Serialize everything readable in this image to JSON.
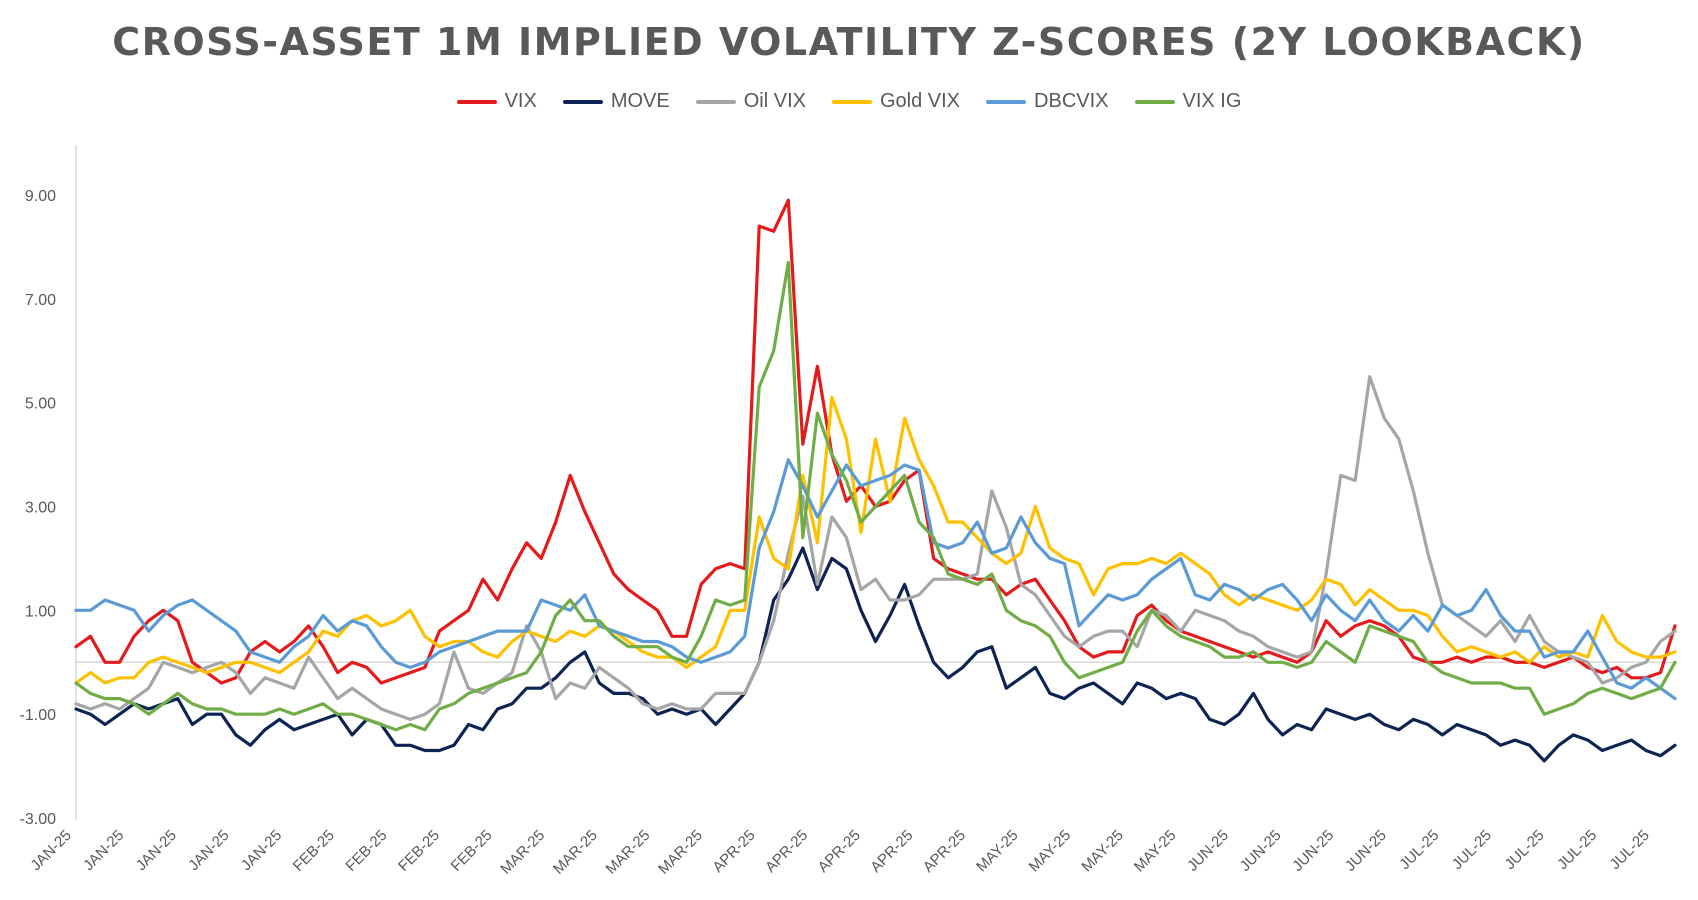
{
  "chart_data": {
    "type": "line",
    "title": "CROSS-ASSET 1M IMPLIED VOLATILITY Z-SCORES (2Y LOOKBACK)",
    "xlabel": "",
    "ylabel": "",
    "ylim": [
      -3,
      10
    ],
    "ytick_values": [
      9,
      7,
      5,
      3,
      1,
      -1,
      -3
    ],
    "ytick_labels": [
      "9.00",
      "7.00",
      "5.00",
      "3.00",
      "1.00",
      "-1.00",
      "-3.00"
    ],
    "xtick_labels": [
      "JAN-25",
      "JAN-25",
      "JAN-25",
      "JAN-25",
      "JAN-25",
      "FEB-25",
      "FEB-25",
      "FEB-25",
      "FEB-25",
      "MAR-25",
      "MAR-25",
      "MAR-25",
      "MAR-25",
      "APR-25",
      "APR-25",
      "APR-25",
      "APR-25",
      "APR-25",
      "MAY-25",
      "MAY-25",
      "MAY-25",
      "MAY-25",
      "JUN-25",
      "JUN-25",
      "JUN-25",
      "JUN-25",
      "JUL-25",
      "JUL-25",
      "JUL-25",
      "JUL-25",
      "JUL-25"
    ],
    "legend_position": "top-center",
    "grid": false,
    "series": [
      {
        "name": "VIX",
        "color": "#E41A1C",
        "values": [
          0.3,
          0.5,
          0.0,
          0.0,
          0.5,
          0.8,
          1.0,
          0.8,
          0.0,
          -0.2,
          -0.4,
          -0.3,
          0.2,
          0.4,
          0.2,
          0.4,
          0.7,
          0.3,
          -0.2,
          0.0,
          -0.1,
          -0.4,
          -0.3,
          -0.2,
          -0.1,
          0.6,
          0.8,
          1.0,
          1.6,
          1.2,
          1.8,
          2.3,
          2.0,
          2.7,
          3.6,
          2.9,
          2.3,
          1.7,
          1.4,
          1.2,
          1.0,
          0.5,
          0.5,
          1.5,
          1.8,
          1.9,
          1.8,
          8.4,
          8.3,
          8.9,
          4.2,
          5.7,
          4.0,
          3.1,
          3.4,
          3.0,
          3.1,
          3.5,
          3.7,
          2.0,
          1.8,
          1.7,
          1.6,
          1.6,
          1.3,
          1.5,
          1.6,
          1.2,
          0.8,
          0.3,
          0.1,
          0.2,
          0.2,
          0.9,
          1.1,
          0.8,
          0.6,
          0.5,
          0.4,
          0.3,
          0.2,
          0.1,
          0.2,
          0.1,
          0.0,
          0.2,
          0.8,
          0.5,
          0.7,
          0.8,
          0.7,
          0.5,
          0.1,
          0.0,
          0.0,
          0.1,
          0.0,
          0.1,
          0.1,
          0.0,
          0.0,
          -0.1,
          0.0,
          0.1,
          -0.1,
          -0.2,
          -0.1,
          -0.3,
          -0.3,
          -0.2,
          0.7
        ]
      },
      {
        "name": "MOVE",
        "color": "#0C2454",
        "values": [
          -0.9,
          -1.0,
          -1.2,
          -1.0,
          -0.8,
          -0.9,
          -0.8,
          -0.7,
          -1.2,
          -1.0,
          -1.0,
          -1.4,
          -1.6,
          -1.3,
          -1.1,
          -1.3,
          -1.2,
          -1.1,
          -1.0,
          -1.4,
          -1.1,
          -1.2,
          -1.6,
          -1.6,
          -1.7,
          -1.7,
          -1.6,
          -1.2,
          -1.3,
          -0.9,
          -0.8,
          -0.5,
          -0.5,
          -0.3,
          0.0,
          0.2,
          -0.4,
          -0.6,
          -0.6,
          -0.7,
          -1.0,
          -0.9,
          -1.0,
          -0.9,
          -1.2,
          -0.9,
          -0.6,
          0.0,
          1.2,
          1.6,
          2.2,
          1.4,
          2.0,
          1.8,
          1.0,
          0.4,
          0.9,
          1.5,
          0.7,
          0.0,
          -0.3,
          -0.1,
          0.2,
          0.3,
          -0.5,
          -0.3,
          -0.1,
          -0.6,
          -0.7,
          -0.5,
          -0.4,
          -0.6,
          -0.8,
          -0.4,
          -0.5,
          -0.7,
          -0.6,
          -0.7,
          -1.1,
          -1.2,
          -1.0,
          -0.6,
          -1.1,
          -1.4,
          -1.2,
          -1.3,
          -0.9,
          -1.0,
          -1.1,
          -1.0,
          -1.2,
          -1.3,
          -1.1,
          -1.2,
          -1.4,
          -1.2,
          -1.3,
          -1.4,
          -1.6,
          -1.5,
          -1.6,
          -1.9,
          -1.6,
          -1.4,
          -1.5,
          -1.7,
          -1.6,
          -1.5,
          -1.7,
          -1.8,
          -1.6
        ]
      },
      {
        "name": "Oil VIX",
        "color": "#A6A6A6",
        "values": [
          -0.8,
          -0.9,
          -0.8,
          -0.9,
          -0.7,
          -0.5,
          0.0,
          -0.1,
          -0.2,
          -0.1,
          0.0,
          -0.2,
          -0.6,
          -0.3,
          -0.4,
          -0.5,
          0.1,
          -0.3,
          -0.7,
          -0.5,
          -0.7,
          -0.9,
          -1.0,
          -1.1,
          -1.0,
          -0.8,
          0.2,
          -0.5,
          -0.6,
          -0.4,
          -0.2,
          0.7,
          0.2,
          -0.7,
          -0.4,
          -0.5,
          -0.1,
          -0.3,
          -0.5,
          -0.8,
          -0.9,
          -0.8,
          -0.9,
          -0.9,
          -0.6,
          -0.6,
          -0.6,
          0.0,
          0.8,
          2.1,
          3.2,
          1.5,
          2.8,
          2.4,
          1.4,
          1.6,
          1.2,
          1.2,
          1.3,
          1.6,
          1.6,
          1.6,
          1.7,
          3.3,
          2.6,
          1.5,
          1.3,
          0.9,
          0.5,
          0.3,
          0.5,
          0.6,
          0.6,
          0.3,
          1.0,
          0.9,
          0.6,
          1.0,
          0.9,
          0.8,
          0.6,
          0.5,
          0.3,
          0.2,
          0.1,
          0.2,
          1.7,
          3.6,
          3.5,
          5.5,
          4.7,
          4.3,
          3.3,
          2.1,
          1.1,
          0.9,
          0.7,
          0.5,
          0.8,
          0.4,
          0.9,
          0.4,
          0.2,
          0.1,
          0.0,
          -0.4,
          -0.3,
          -0.1,
          0.0,
          0.4,
          0.6
        ]
      },
      {
        "name": "Gold VIX",
        "color": "#FFC000",
        "values": [
          -0.4,
          -0.2,
          -0.4,
          -0.3,
          -0.3,
          0.0,
          0.1,
          0.0,
          -0.1,
          -0.2,
          -0.1,
          0.0,
          0.0,
          -0.1,
          -0.2,
          0.0,
          0.2,
          0.6,
          0.5,
          0.8,
          0.9,
          0.7,
          0.8,
          1.0,
          0.5,
          0.3,
          0.4,
          0.4,
          0.2,
          0.1,
          0.4,
          0.6,
          0.5,
          0.4,
          0.6,
          0.5,
          0.7,
          0.6,
          0.4,
          0.2,
          0.1,
          0.1,
          -0.1,
          0.1,
          0.3,
          1.0,
          1.0,
          2.8,
          2.0,
          1.8,
          3.6,
          2.3,
          5.1,
          4.3,
          2.5,
          4.3,
          3.1,
          4.7,
          3.9,
          3.4,
          2.7,
          2.7,
          2.4,
          2.1,
          1.9,
          2.1,
          3.0,
          2.2,
          2.0,
          1.9,
          1.3,
          1.8,
          1.9,
          1.9,
          2.0,
          1.9,
          2.1,
          1.9,
          1.7,
          1.3,
          1.1,
          1.3,
          1.2,
          1.1,
          1.0,
          1.2,
          1.6,
          1.5,
          1.1,
          1.4,
          1.2,
          1.0,
          1.0,
          0.9,
          0.5,
          0.2,
          0.3,
          0.2,
          0.1,
          0.2,
          0.0,
          0.3,
          0.1,
          0.2,
          0.1,
          0.9,
          0.4,
          0.2,
          0.1,
          0.1,
          0.2
        ]
      },
      {
        "name": "DBCVIX",
        "color": "#5B9BD5",
        "values": [
          1.0,
          1.0,
          1.2,
          1.1,
          1.0,
          0.6,
          0.9,
          1.1,
          1.2,
          1.0,
          0.8,
          0.6,
          0.2,
          0.1,
          0.0,
          0.3,
          0.5,
          0.9,
          0.6,
          0.8,
          0.7,
          0.3,
          0.0,
          -0.1,
          0.0,
          0.2,
          0.3,
          0.4,
          0.5,
          0.6,
          0.6,
          0.6,
          1.2,
          1.1,
          1.0,
          1.3,
          0.7,
          0.6,
          0.5,
          0.4,
          0.4,
          0.3,
          0.1,
          0.0,
          0.1,
          0.2,
          0.5,
          2.2,
          2.9,
          3.9,
          3.4,
          2.8,
          3.3,
          3.8,
          3.4,
          3.5,
          3.6,
          3.8,
          3.7,
          2.3,
          2.2,
          2.3,
          2.7,
          2.1,
          2.2,
          2.8,
          2.3,
          2.0,
          1.9,
          0.7,
          1.0,
          1.3,
          1.2,
          1.3,
          1.6,
          1.8,
          2.0,
          1.3,
          1.2,
          1.5,
          1.4,
          1.2,
          1.4,
          1.5,
          1.2,
          0.8,
          1.3,
          1.0,
          0.8,
          1.2,
          0.8,
          0.6,
          0.9,
          0.6,
          1.1,
          0.9,
          1.0,
          1.4,
          0.9,
          0.6,
          0.6,
          0.1,
          0.2,
          0.2,
          0.6,
          0.1,
          -0.4,
          -0.5,
          -0.3,
          -0.5,
          -0.7
        ]
      },
      {
        "name": "VIX IG",
        "color": "#70AD47",
        "values": [
          -0.4,
          -0.6,
          -0.7,
          -0.7,
          -0.8,
          -1.0,
          -0.8,
          -0.6,
          -0.8,
          -0.9,
          -0.9,
          -1.0,
          -1.0,
          -1.0,
          -0.9,
          -1.0,
          -0.9,
          -0.8,
          -1.0,
          -1.0,
          -1.1,
          -1.2,
          -1.3,
          -1.2,
          -1.3,
          -0.9,
          -0.8,
          -0.6,
          -0.5,
          -0.4,
          -0.3,
          -0.2,
          0.2,
          0.9,
          1.2,
          0.8,
          0.8,
          0.5,
          0.3,
          0.3,
          0.3,
          0.1,
          0.0,
          0.5,
          1.2,
          1.1,
          1.2,
          5.3,
          6.0,
          7.7,
          2.4,
          4.8,
          4.0,
          3.5,
          2.7,
          3.0,
          3.3,
          3.6,
          2.7,
          2.4,
          1.7,
          1.6,
          1.5,
          1.7,
          1.0,
          0.8,
          0.7,
          0.5,
          0.0,
          -0.3,
          -0.2,
          -0.1,
          0.0,
          0.6,
          1.0,
          0.7,
          0.5,
          0.4,
          0.3,
          0.1,
          0.1,
          0.2,
          0.0,
          0.0,
          -0.1,
          0.0,
          0.4,
          0.2,
          0.0,
          0.7,
          0.6,
          0.5,
          0.4,
          0.0,
          -0.2,
          -0.3,
          -0.4,
          -0.4,
          -0.4,
          -0.5,
          -0.5,
          -1.0,
          -0.9,
          -0.8,
          -0.6,
          -0.5,
          -0.6,
          -0.7,
          -0.6,
          -0.5,
          0.0
        ]
      }
    ]
  }
}
